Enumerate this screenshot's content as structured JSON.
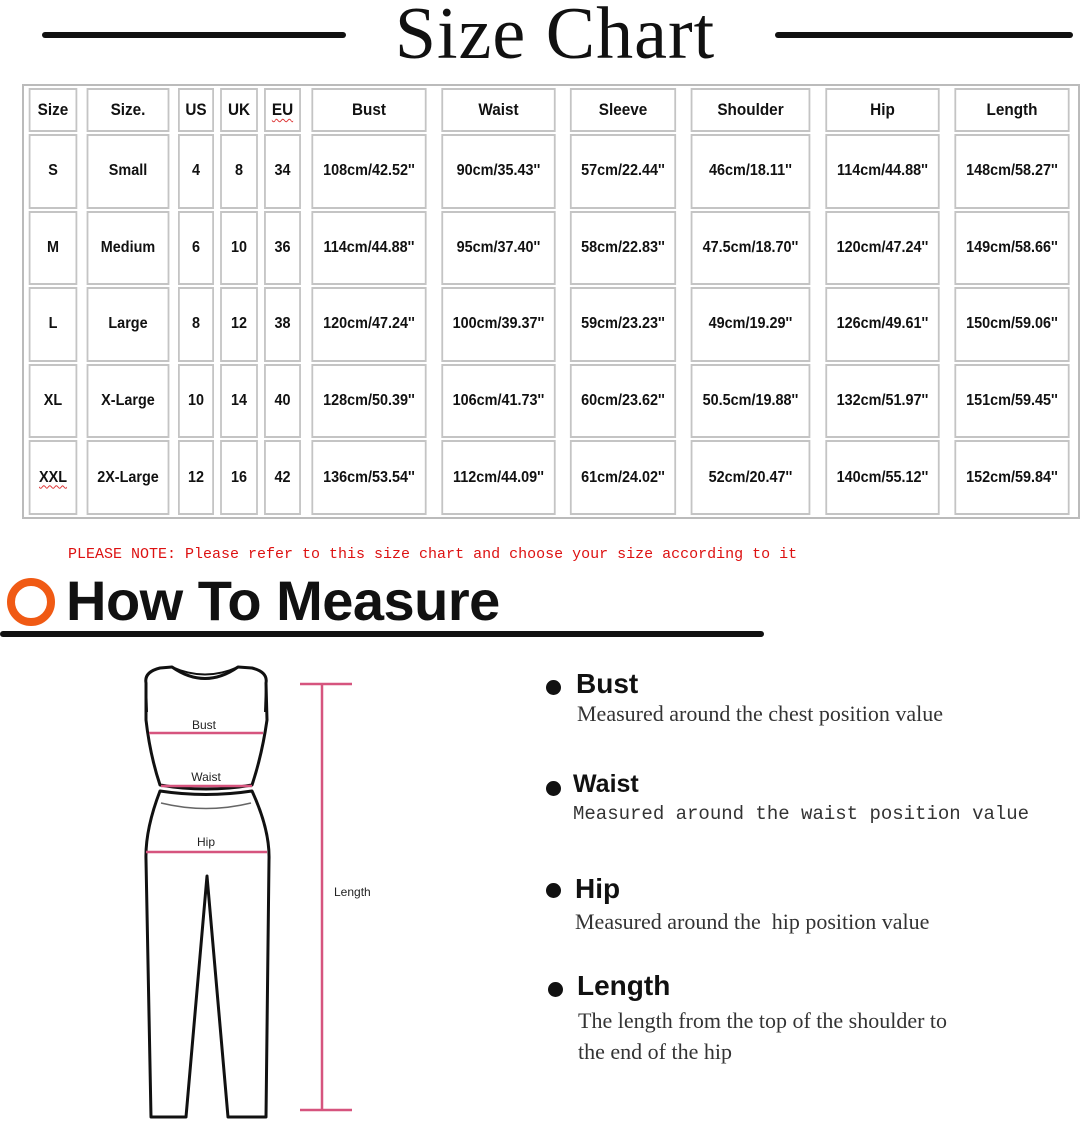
{
  "title": "Size Chart",
  "table": {
    "headers": [
      "Size",
      "Size.",
      "US",
      "UK",
      "EU",
      "Bust",
      "Waist",
      "Sleeve",
      "Shoulder",
      "Hip",
      "Length"
    ],
    "rows": [
      [
        "S",
        "Small",
        "4",
        "8",
        "34",
        "108cm/42.52''",
        "90cm/35.43''",
        "57cm/22.44''",
        "46cm/18.11''",
        "114cm/44.88''",
        "148cm/58.27''"
      ],
      [
        "M",
        "Medium",
        "6",
        "10",
        "36",
        "114cm/44.88''",
        "95cm/37.40''",
        "58cm/22.83''",
        "47.5cm/18.70''",
        "120cm/47.24''",
        "149cm/58.66''"
      ],
      [
        "L",
        "Large",
        "8",
        "12",
        "38",
        "120cm/47.24''",
        "100cm/39.37''",
        "59cm/23.23''",
        "49cm/19.29''",
        "126cm/49.61''",
        "150cm/59.06''"
      ],
      [
        "XL",
        "X-Large",
        "10",
        "14",
        "40",
        "128cm/50.39''",
        "106cm/41.73''",
        "60cm/23.62''",
        "50.5cm/19.88''",
        "132cm/51.97''",
        "151cm/59.45''"
      ],
      [
        "XXL",
        "2X-Large",
        "12",
        "16",
        "42",
        "136cm/53.54''",
        "112cm/44.09''",
        "61cm/24.02''",
        "52cm/20.47''",
        "140cm/55.12''",
        "152cm/59.84''"
      ]
    ]
  },
  "note": "PLEASE NOTE: Please refer to this size chart and choose your size according to it",
  "how_to": {
    "title": "How To Measure",
    "figure_labels": {
      "bust": "Bust",
      "waist": "Waist",
      "hip": "Hip",
      "length": "Length"
    },
    "items": [
      {
        "title": "Bust",
        "desc": "Measured around the chest position value"
      },
      {
        "title": "Waist",
        "desc": "Measured around the waist position value"
      },
      {
        "title": "Hip",
        "desc": "Measured around the  hip position value"
      },
      {
        "title": "Length",
        "desc": "The length from the top of the shoulder to",
        "desc2": "the end of the hip"
      }
    ]
  },
  "colors": {
    "accent_orange": "#f05a14",
    "note_red": "#dd1111",
    "measure_pink": "#d6547e"
  }
}
